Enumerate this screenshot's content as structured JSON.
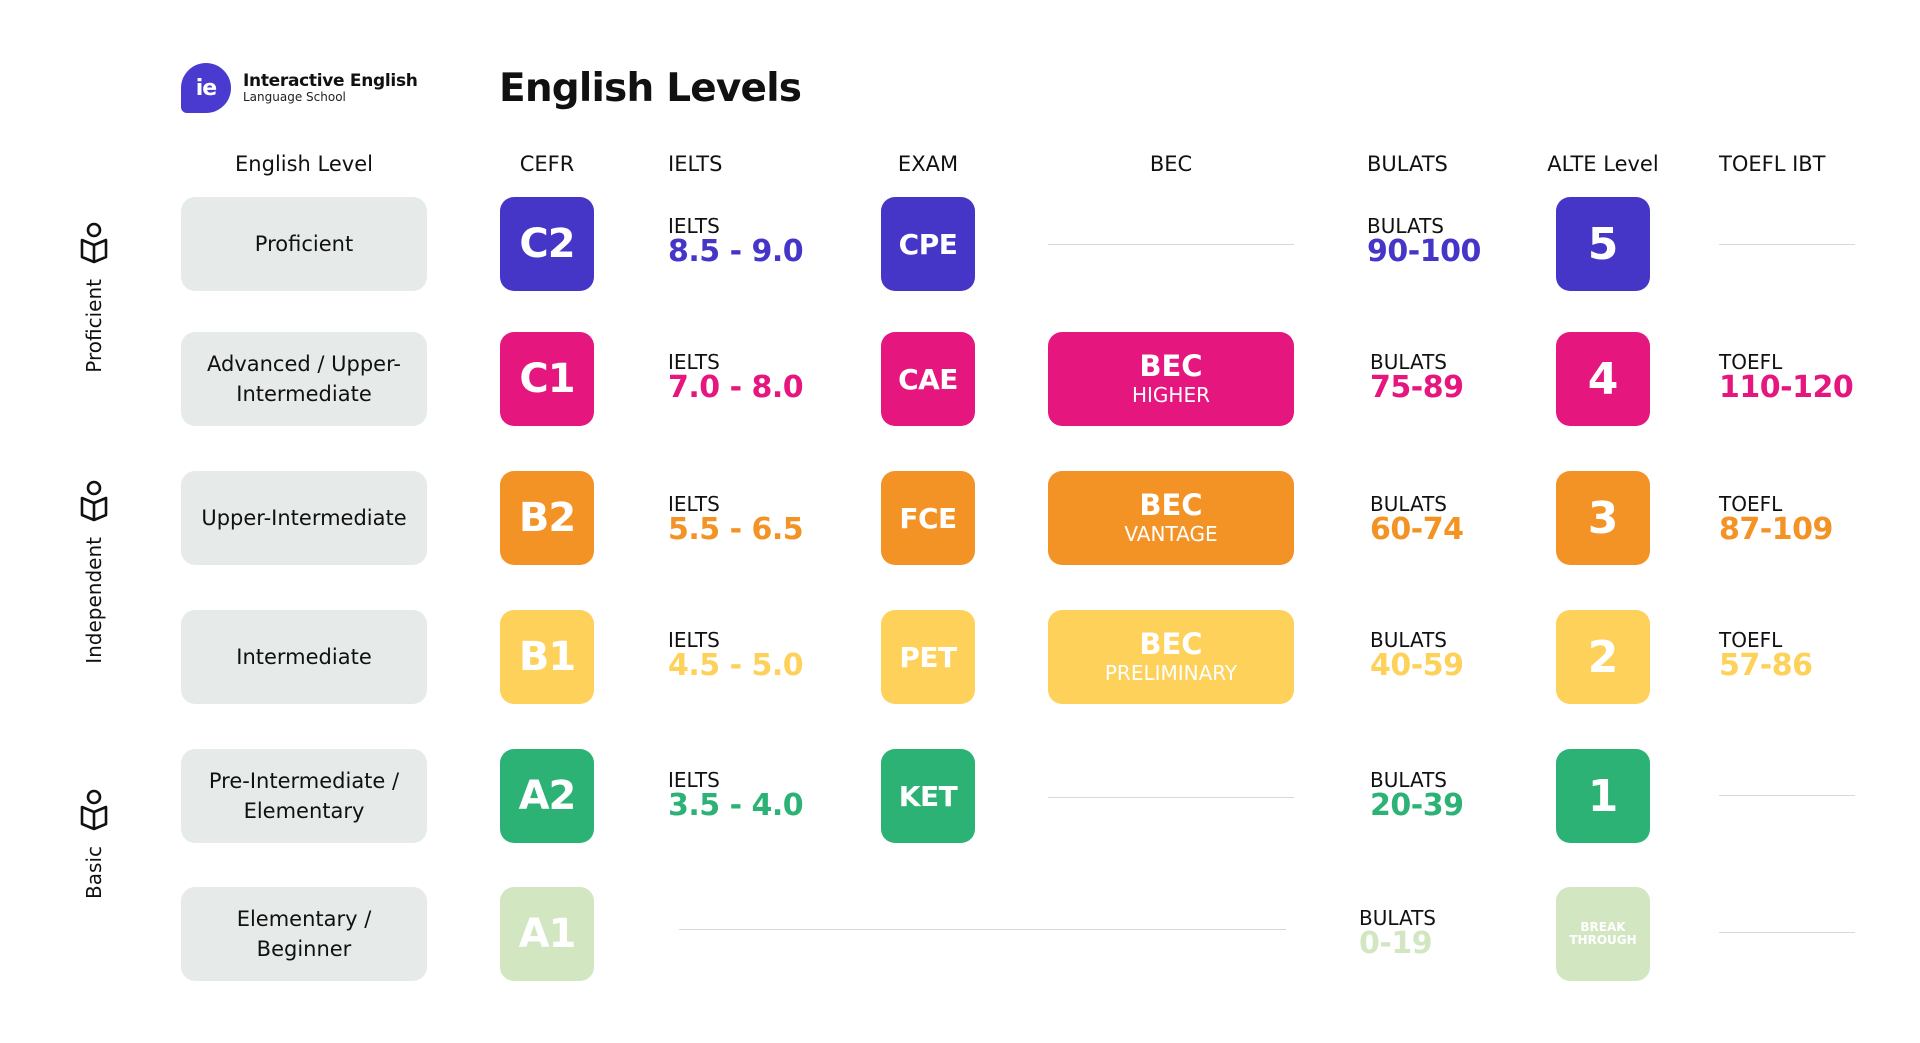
{
  "brand": {
    "logo_mark": "ie",
    "name": "Interactive English",
    "subtitle": "Language School"
  },
  "title": "English Levels",
  "columns": {
    "level": "English Level",
    "cefr": "CEFR",
    "ielts": "IELTS",
    "exam": "EXAM",
    "bec": "BEC",
    "bulats": "BULATS",
    "alte": "ALTE Level",
    "toefl": "TOEFL IBT"
  },
  "categories": [
    {
      "label": "Proficient",
      "icon": "person-book-icon"
    },
    {
      "label": "Independent",
      "icon": "person-book-icon"
    },
    {
      "label": "Basic",
      "icon": "person-book-icon"
    }
  ],
  "colors": {
    "C2": "#4636c8",
    "C1": "#e6167f",
    "B2": "#f39325",
    "B1": "#fdd15a",
    "A2": "#2db276",
    "A1": "#d3e6c2",
    "level_box": "#e6ebea"
  },
  "rows": [
    {
      "level": "Proficient",
      "cefr": "C2",
      "ielts": {
        "label": "IELTS",
        "value": "8.5 - 9.0"
      },
      "exam": "CPE",
      "bec": null,
      "bulats": {
        "label": "BULATS",
        "value": "90-100"
      },
      "alte": "5",
      "toefl": null
    },
    {
      "level": "Advanced / Upper-Intermediate",
      "cefr": "C1",
      "ielts": {
        "label": "IELTS",
        "value": "7.0 - 8.0"
      },
      "exam": "CAE",
      "bec": {
        "title": "BEC",
        "sub": "HIGHER"
      },
      "bulats": {
        "label": "BULATS",
        "value": "75-89"
      },
      "alte": "4",
      "toefl": {
        "label": "TOEFL",
        "value": "110-120"
      }
    },
    {
      "level": "Upper-Intermediate",
      "cefr": "B2",
      "ielts": {
        "label": "IELTS",
        "value": "5.5 - 6.5"
      },
      "exam": "FCE",
      "bec": {
        "title": "BEC",
        "sub": "VANTAGE"
      },
      "bulats": {
        "label": "BULATS",
        "value": "60-74"
      },
      "alte": "3",
      "toefl": {
        "label": "TOEFL",
        "value": "87-109"
      }
    },
    {
      "level": "Intermediate",
      "cefr": "B1",
      "ielts": {
        "label": "IELTS",
        "value": "4.5 - 5.0"
      },
      "exam": "PET",
      "bec": {
        "title": "BEC",
        "sub": "PRELIMINARY"
      },
      "bulats": {
        "label": "BULATS",
        "value": "40-59"
      },
      "alte": "2",
      "toefl": {
        "label": "TOEFL",
        "value": "57-86"
      }
    },
    {
      "level": "Pre-Intermediate / Elementary",
      "cefr": "A2",
      "ielts": {
        "label": "IELTS",
        "value": "3.5 - 4.0"
      },
      "exam": "KET",
      "bec": null,
      "bulats": {
        "label": "BULATS",
        "value": "20-39"
      },
      "alte": "1",
      "toefl": null
    },
    {
      "level": "Elementary / Beginner",
      "cefr": "A1",
      "ielts": null,
      "exam": null,
      "bec": null,
      "bulats": {
        "label": "BULATS",
        "value": "0-19"
      },
      "alte": "BREAK THROUGH",
      "toefl": null
    }
  ]
}
